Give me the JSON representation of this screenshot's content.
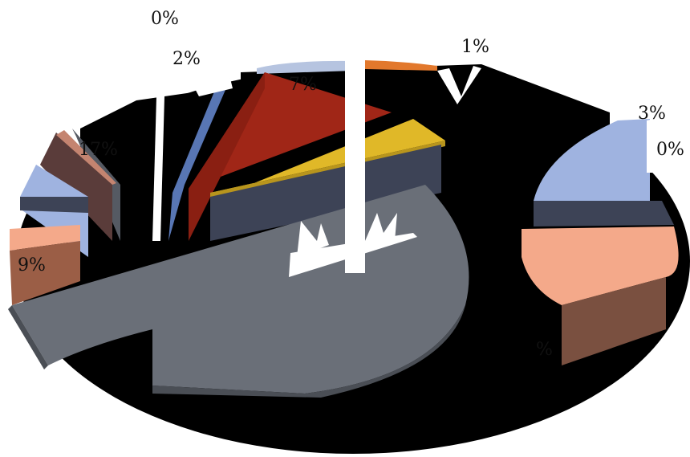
{
  "chart_data": {
    "type": "pie",
    "style": "3d-exploded",
    "legend": "none",
    "slices": [
      {
        "label": "1%",
        "value": 1,
        "color": "#e2782c"
      },
      {
        "label": "",
        "value": 0,
        "color": "#000000"
      },
      {
        "label": "",
        "value": 50,
        "color": "#000000"
      },
      {
        "label": "3%",
        "value": 3,
        "color": "#9fb3e0"
      },
      {
        "label": "0%",
        "value": 0,
        "color": "#3d4356"
      },
      {
        "label": "",
        "value": 20,
        "color": "#f4a98a"
      },
      {
        "label": "",
        "value": 30,
        "color": "#6a6f78"
      },
      {
        "label": "9%",
        "value": 9,
        "color": "#f4a98a"
      },
      {
        "label": "",
        "value": 6,
        "color": "#9fb3e0"
      },
      {
        "label": "17%",
        "value": 17,
        "color": "#5a3c3a"
      },
      {
        "label": "",
        "value": 3,
        "color": "#6a6f78"
      },
      {
        "label": "",
        "value": 5,
        "color": "#000000"
      },
      {
        "label": "0%",
        "value": 0,
        "color": "#e2782c"
      },
      {
        "label": "2%",
        "value": 2,
        "color": "#5876b4"
      },
      {
        "label": "7%",
        "value": 7,
        "color": "#a02617"
      },
      {
        "label": "",
        "value": 4,
        "color": "#e0b828"
      },
      {
        "label": "",
        "value": 0,
        "color": "#3d4356"
      }
    ],
    "labels": [
      "1%",
      "3%",
      "0%",
      "9%",
      "17%",
      "0%",
      "2%",
      "7%",
      "%"
    ]
  }
}
